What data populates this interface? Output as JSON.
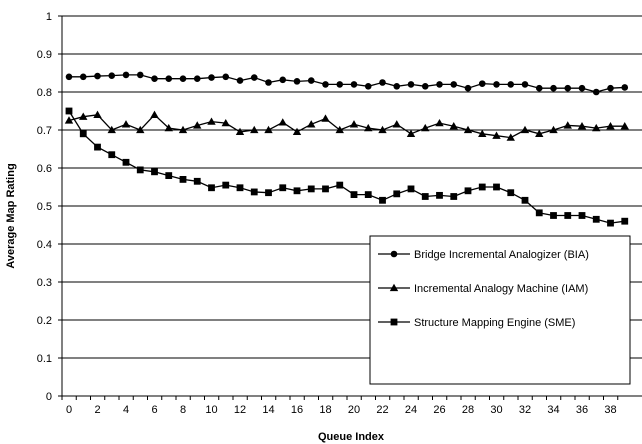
{
  "chart_data": {
    "type": "line",
    "xlabel": "Queue Index",
    "ylabel": "Average Map Rating",
    "xlim": [
      0,
      39
    ],
    "ylim": [
      0,
      1
    ],
    "x_ticks": [
      0,
      2,
      4,
      6,
      8,
      10,
      12,
      14,
      16,
      18,
      20,
      22,
      24,
      26,
      28,
      30,
      32,
      34,
      36,
      38
    ],
    "y_ticks": [
      0,
      0.1,
      0.2,
      0.3,
      0.4,
      0.5,
      0.6,
      0.7,
      0.8,
      0.9,
      1
    ],
    "grid": "horizontal",
    "legend_position": "bottom-right",
    "x": [
      0,
      1,
      2,
      3,
      4,
      5,
      6,
      7,
      8,
      9,
      10,
      11,
      12,
      13,
      14,
      15,
      16,
      17,
      18,
      19,
      20,
      21,
      22,
      23,
      24,
      25,
      26,
      27,
      28,
      29,
      30,
      31,
      32,
      33,
      34,
      35,
      36,
      37,
      38,
      39
    ],
    "series": [
      {
        "name": "Bridge Incremental Analogizer (BIA)",
        "marker": "circle",
        "values": [
          0.84,
          0.84,
          0.842,
          0.843,
          0.845,
          0.845,
          0.835,
          0.835,
          0.835,
          0.835,
          0.838,
          0.84,
          0.83,
          0.838,
          0.825,
          0.832,
          0.828,
          0.83,
          0.82,
          0.82,
          0.82,
          0.815,
          0.825,
          0.815,
          0.82,
          0.815,
          0.82,
          0.82,
          0.81,
          0.822,
          0.82,
          0.82,
          0.82,
          0.81,
          0.81,
          0.81,
          0.81,
          0.8,
          0.81,
          0.812
        ]
      },
      {
        "name": "Incremental Analogy Machine (IAM)",
        "marker": "triangle",
        "values": [
          0.725,
          0.735,
          0.74,
          0.7,
          0.715,
          0.7,
          0.74,
          0.705,
          0.7,
          0.712,
          0.722,
          0.718,
          0.695,
          0.7,
          0.7,
          0.72,
          0.695,
          0.715,
          0.73,
          0.7,
          0.715,
          0.705,
          0.7,
          0.715,
          0.69,
          0.705,
          0.718,
          0.71,
          0.7,
          0.69,
          0.685,
          0.68,
          0.7,
          0.69,
          0.7,
          0.712,
          0.71,
          0.705,
          0.71,
          0.71
        ]
      },
      {
        "name": "Structure Mapping Engine (SME)",
        "marker": "square",
        "values": [
          0.75,
          0.69,
          0.655,
          0.635,
          0.615,
          0.595,
          0.59,
          0.58,
          0.57,
          0.565,
          0.548,
          0.555,
          0.548,
          0.537,
          0.535,
          0.548,
          0.54,
          0.545,
          0.545,
          0.555,
          0.53,
          0.53,
          0.515,
          0.532,
          0.545,
          0.525,
          0.528,
          0.525,
          0.54,
          0.55,
          0.55,
          0.535,
          0.515,
          0.482,
          0.475,
          0.475,
          0.475,
          0.465,
          0.455,
          0.46
        ]
      }
    ]
  },
  "colors": {
    "series": "#000000",
    "grid": "#000000",
    "background": "#ffffff"
  }
}
